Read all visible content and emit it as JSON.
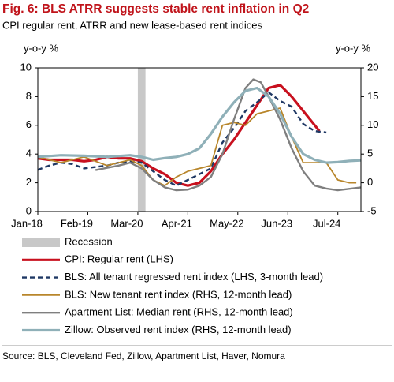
{
  "chart_data": {
    "type": "line",
    "title": "Fig. 6: BLS ATRR suggests stable rent inflation in Q2",
    "subtitle": "CPI regular rent, ATRR and new lease-based rent indices",
    "ylabel": "y-o-y %",
    "y2label": "y-o-y %",
    "xlim": [
      2018.0,
      2025.0
    ],
    "xticks": [
      {
        "value": 2018.0,
        "label": "Jan-18"
      },
      {
        "value": 2019.083,
        "label": "Feb-19"
      },
      {
        "value": 2020.167,
        "label": "Mar-20"
      },
      {
        "value": 2021.25,
        "label": "Apr-21"
      },
      {
        "value": 2022.333,
        "label": "May-22"
      },
      {
        "value": 2023.417,
        "label": "Jun-23"
      },
      {
        "value": 2024.5,
        "label": "Jul-24"
      }
    ],
    "ylim": [
      0,
      10
    ],
    "yticks": [
      0,
      2,
      4,
      6,
      8,
      10
    ],
    "y2lim": [
      -5,
      20
    ],
    "y2ticks": [
      -5,
      0,
      5,
      10,
      15,
      20
    ],
    "bands": [
      {
        "name": "Recession",
        "color": "#c8c8c8",
        "x": [
          2020.167,
          2020.333
        ]
      }
    ],
    "series": [
      {
        "name": "CPI: Regular rent (LHS)",
        "color": "#c8101e",
        "width": 3.2,
        "dash": "none",
        "x": [
          2018.0,
          2018.25,
          2018.5,
          2018.75,
          2019.0,
          2019.25,
          2019.5,
          2019.75,
          2020.0,
          2020.25,
          2020.5,
          2020.75,
          2021.0,
          2021.25,
          2021.5,
          2021.75,
          2022.0,
          2022.25,
          2022.5,
          2022.75,
          2023.0,
          2023.25,
          2023.5,
          2023.75,
          2024.0,
          2024.1
        ],
        "values": [
          3.7,
          3.6,
          3.6,
          3.6,
          3.5,
          3.6,
          3.8,
          3.7,
          3.7,
          3.5,
          3.0,
          2.6,
          2.0,
          1.8,
          2.0,
          2.8,
          4.0,
          5.0,
          6.2,
          7.4,
          8.6,
          8.8,
          8.0,
          7.0,
          6.0,
          5.6
        ]
      },
      {
        "name": "BLS: All tenant regressed rent index (LHS, 3-month lead)",
        "color": "#1f3864",
        "width": 2.4,
        "dash": "6 4",
        "x": [
          2018.0,
          2018.25,
          2018.5,
          2018.75,
          2019.0,
          2019.25,
          2019.5,
          2019.75,
          2020.0,
          2020.25,
          2020.5,
          2020.75,
          2021.0,
          2021.25,
          2021.5,
          2021.75,
          2022.0,
          2022.25,
          2022.5,
          2022.75,
          2023.0,
          2023.25,
          2023.5,
          2023.75,
          2024.0,
          2024.25
        ],
        "values": [
          2.9,
          3.2,
          3.4,
          3.3,
          3.0,
          3.1,
          3.2,
          3.4,
          3.5,
          3.4,
          2.8,
          2.2,
          1.8,
          2.2,
          2.6,
          3.0,
          4.8,
          5.8,
          7.0,
          7.6,
          8.3,
          7.7,
          7.3,
          6.1,
          5.6,
          5.5
        ]
      },
      {
        "name": "BLS: New tenant rent index (RHS, 12-month lead)",
        "color": "#b8862b",
        "width": 1.8,
        "dash": "none",
        "axis": "y2",
        "x": [
          2018.0,
          2018.5,
          2019.0,
          2019.5,
          2020.0,
          2020.25,
          2020.5,
          2020.75,
          2021.0,
          2021.25,
          2021.5,
          2021.75,
          2022.0,
          2022.25,
          2022.5,
          2022.75,
          2023.0,
          2023.25,
          2023.5,
          2023.75,
          2024.0,
          2024.25,
          2024.5,
          2024.75,
          2024.9
        ],
        "values": [
          4.5,
          3.5,
          4.5,
          3.0,
          4.0,
          3.0,
          0.5,
          -0.5,
          1.0,
          2.0,
          2.5,
          3.0,
          10.0,
          10.5,
          10.0,
          12.0,
          12.5,
          13.0,
          8.0,
          3.5,
          3.5,
          3.5,
          0.5,
          0.0,
          0.0
        ]
      },
      {
        "name": "Apartment List: Median rent (RHS, 12-month lead)",
        "color": "#7f7f7f",
        "width": 2.4,
        "dash": "none",
        "axis": "y2",
        "x": [
          2019.25,
          2019.75,
          2020.0,
          2020.25,
          2020.5,
          2020.75,
          2021.0,
          2021.25,
          2021.5,
          2021.75,
          2022.0,
          2022.25,
          2022.5,
          2022.67,
          2022.83,
          2023.0,
          2023.25,
          2023.5,
          2023.75,
          2024.0,
          2024.25,
          2024.5,
          2025.0
        ],
        "values": [
          2.2,
          3.0,
          3.5,
          2.5,
          0.5,
          -0.8,
          -1.3,
          -1.2,
          -0.5,
          1.0,
          5.0,
          11.0,
          16.5,
          18.0,
          17.5,
          15.0,
          11.0,
          6.0,
          2.0,
          -0.5,
          -1.0,
          -1.3,
          -0.8
        ]
      },
      {
        "name": "Zillow: Observed rent index (RHS, 12-month lead)",
        "color": "#8fb0b8",
        "width": 3.2,
        "dash": "none",
        "axis": "y2",
        "x": [
          2018.0,
          2018.5,
          2019.0,
          2019.5,
          2020.0,
          2020.25,
          2020.5,
          2020.75,
          2021.0,
          2021.25,
          2021.5,
          2021.75,
          2022.0,
          2022.25,
          2022.5,
          2022.75,
          2023.0,
          2023.25,
          2023.5,
          2023.75,
          2024.0,
          2024.25,
          2024.5,
          2024.75,
          2025.0
        ],
        "values": [
          4.5,
          4.8,
          4.7,
          4.5,
          4.8,
          4.5,
          4.0,
          4.3,
          4.5,
          5.0,
          6.0,
          8.5,
          11.5,
          14.0,
          16.0,
          16.5,
          15.0,
          12.0,
          8.0,
          5.0,
          4.0,
          3.5,
          3.6,
          3.8,
          3.9
        ]
      }
    ],
    "source": "Source: BLS, Cleveland Fed, Zillow, Apartment List, Haver, Nomura"
  }
}
